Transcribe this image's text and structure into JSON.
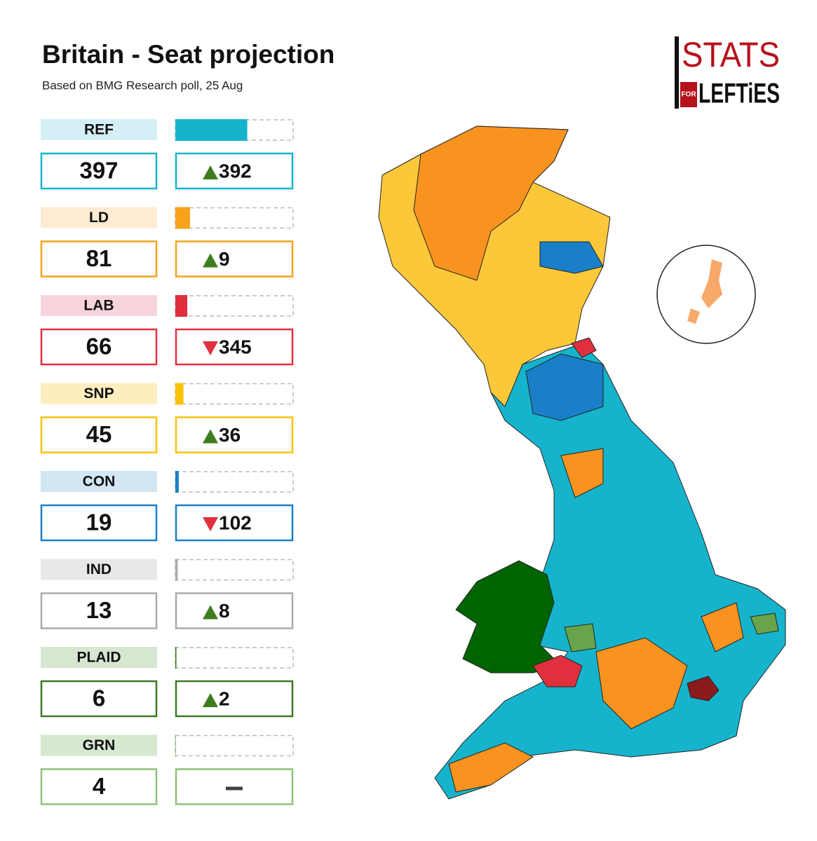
{
  "chart_data": {
    "type": "bar",
    "title": "Britain - Seat projection",
    "subtitle": "Based on BMG Research poll, 25 Aug",
    "logo": {
      "top": "STATS",
      "middle": "FOR",
      "bottom": "LEFTiES"
    },
    "categories": [
      "REF",
      "LD",
      "LAB",
      "SNP",
      "CON",
      "IND",
      "PLAID",
      "GRN"
    ],
    "values": [
      397,
      81,
      66,
      45,
      19,
      13,
      6,
      4
    ],
    "change": [
      392,
      9,
      -345,
      36,
      -102,
      8,
      2,
      null
    ],
    "change_labels": [
      "392",
      "9",
      "345",
      "36",
      "102",
      "8",
      "2",
      "–"
    ],
    "colors": [
      "#16b4cc",
      "#f7a21b",
      "#e0303e",
      "#fcc20a",
      "#1a7fc9",
      "#aaaaaa",
      "#3b7a22",
      "#8fc27a"
    ],
    "label_colors": [
      "#d4f0f6",
      "#fdebd3",
      "#f8d5dc",
      "#fdeec0",
      "#d2e6f4",
      "#e8e8e8",
      "#d6e6d0",
      "#d6e8d0"
    ],
    "xlim": [
      0,
      650
    ]
  }
}
